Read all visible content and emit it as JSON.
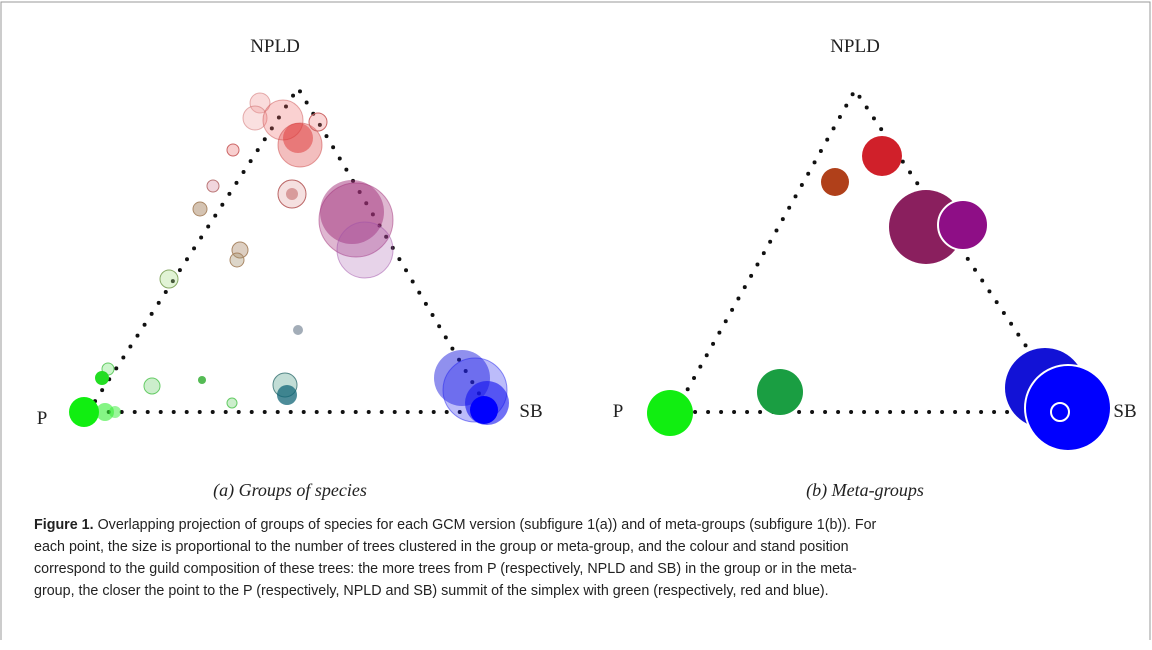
{
  "figure": {
    "panels": [
      {
        "top": "NPLD",
        "left": "P",
        "right": "SB",
        "subcaption": "(a) Groups of species"
      },
      {
        "top": "NPLD",
        "left": "P",
        "right": "SB",
        "subcaption": "(b) Meta-groups"
      }
    ],
    "caption": {
      "label": "Figure 1.",
      "lines": [
        " Overlapping projection of groups of species for each GCM version (subfigure 1(a)) and of meta-groups (subfigure 1(b)). For",
        "each point, the size is proportional to the number of trees clustered in the group or meta-group, and the colour and stand position",
        "correspond to the guild composition of these trees: the more trees from P (respectively, NPLD and SB) in the group or in the meta-",
        "group, the closer the point to the P (respectively, NPLD and SB) summit of the simplex with green (respectively, red and blue)."
      ]
    }
  }
}
